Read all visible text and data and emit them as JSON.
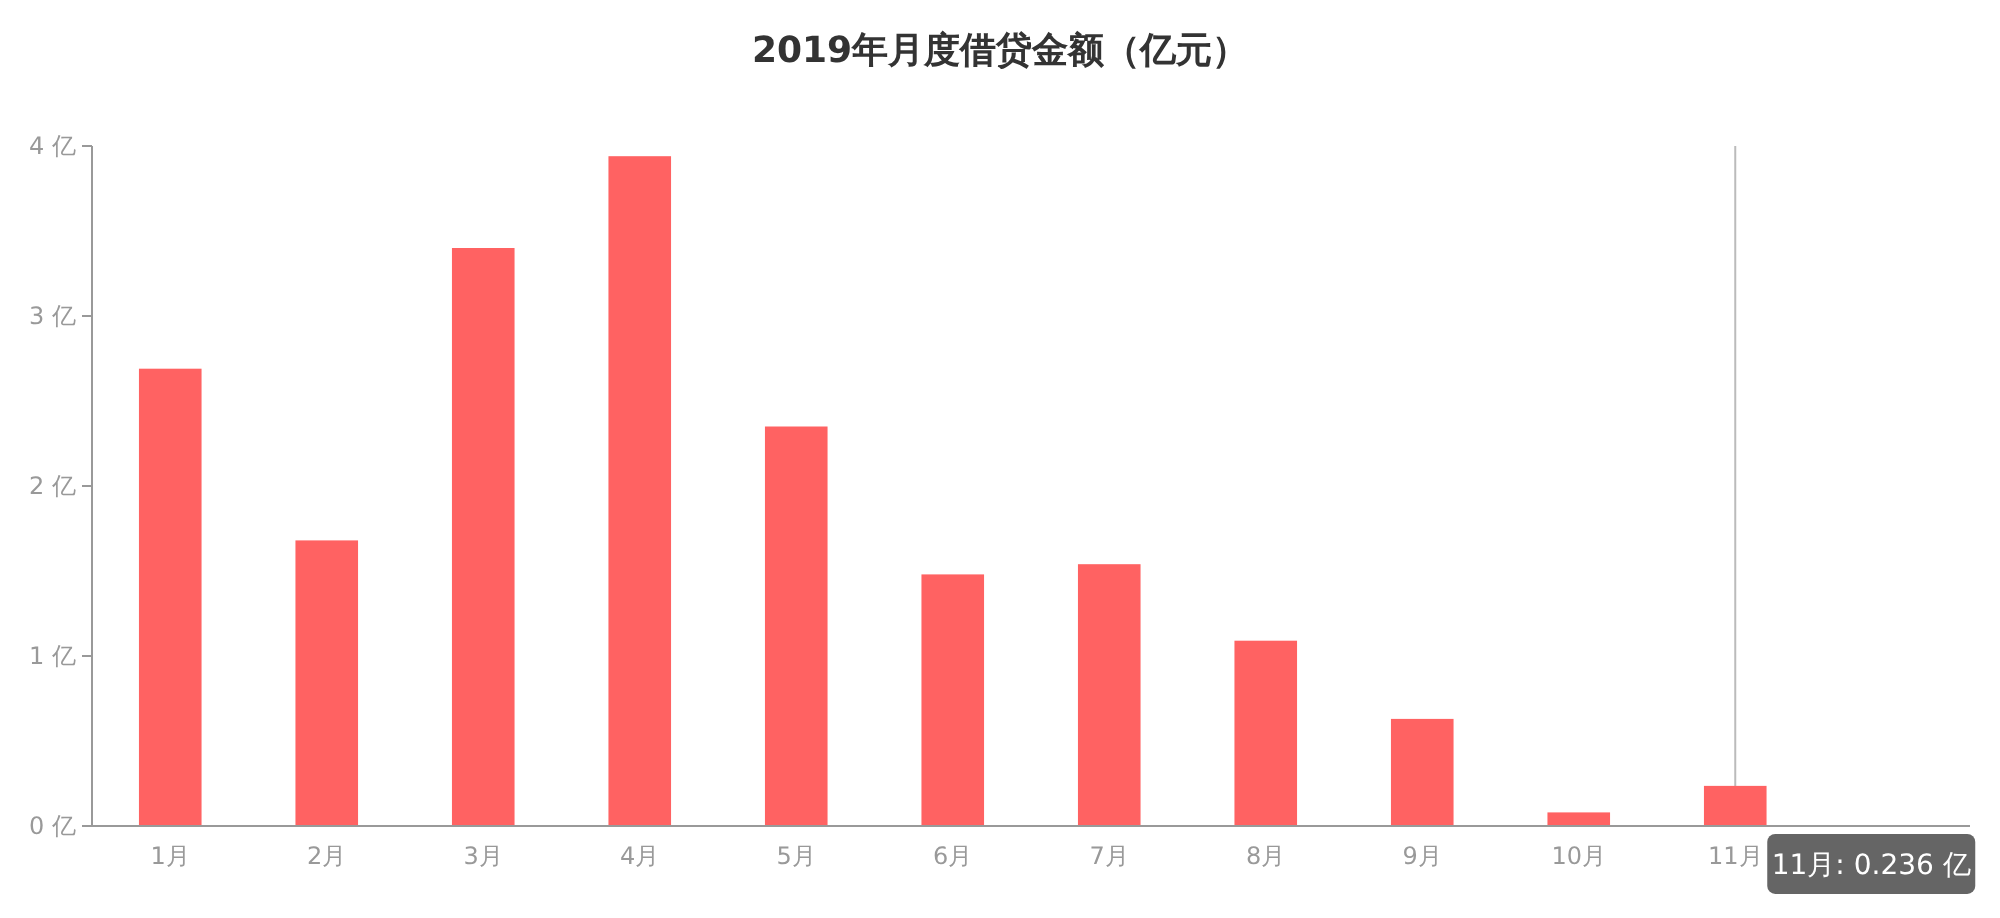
{
  "chart_data": {
    "type": "bar",
    "title": "2019年月度借贷金额（亿元）",
    "categories": [
      "1月",
      "2月",
      "3月",
      "4月",
      "5月",
      "6月",
      "7月",
      "8月",
      "9月",
      "10月",
      "11月",
      null
    ],
    "values": [
      2.69,
      1.68,
      3.4,
      3.94,
      2.35,
      1.48,
      1.54,
      1.09,
      0.63,
      0.08,
      0.236,
      null
    ],
    "color": "#ff6262",
    "ylim": [
      0,
      4
    ],
    "yticks": [
      {
        "value": 0,
        "label": "0 亿"
      },
      {
        "value": 1,
        "label": "1 亿"
      },
      {
        "value": 2,
        "label": "2 亿"
      },
      {
        "value": 3,
        "label": "3 亿"
      },
      {
        "value": 4,
        "label": "4 亿"
      }
    ],
    "grid": false,
    "ref_lines": [
      {
        "axis": "x",
        "value": "11月",
        "color": "#bbbbbb"
      }
    ],
    "annotations": [
      {
        "text": "11月: 0.236 亿",
        "x": "11月",
        "y": 0.236
      }
    ]
  }
}
